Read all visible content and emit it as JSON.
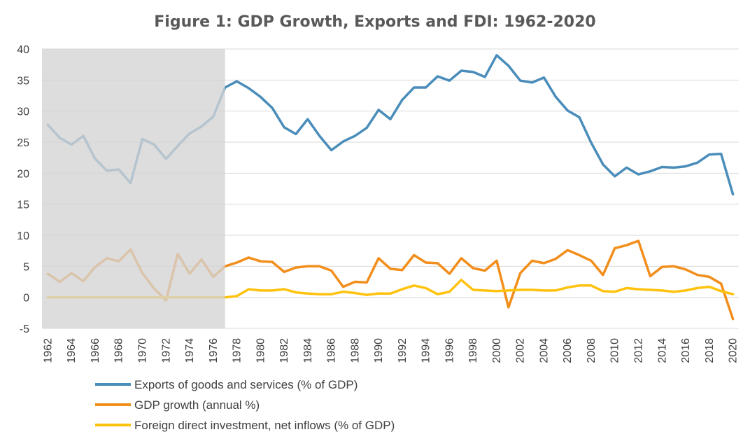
{
  "chart_data": {
    "type": "line",
    "title": "Figure 1: GDP Growth, Exports and FDI: 1962-2020",
    "xlabel": "",
    "ylabel": "",
    "ylim": [
      -5,
      40
    ],
    "y_ticks": [
      "-5",
      "0",
      "5",
      "10",
      "15",
      "20",
      "25",
      "30",
      "35",
      "40"
    ],
    "x_ticks": [
      "1962",
      "1964",
      "1966",
      "1968",
      "1970",
      "1972",
      "1974",
      "1976",
      "1978",
      "1980",
      "1982",
      "1984",
      "1986",
      "1988",
      "1990",
      "1992",
      "1994",
      "1996",
      "1998",
      "2000",
      "2002",
      "2004",
      "2006",
      "2008",
      "2010",
      "2012",
      "2014",
      "2016",
      "2018",
      "2020"
    ],
    "grid": "horizontal",
    "legend": "bottom",
    "shaded_range": [
      1962,
      1977
    ],
    "shade_color": "#d3d3d3",
    "x": [
      1962,
      1963,
      1964,
      1965,
      1966,
      1967,
      1968,
      1969,
      1970,
      1971,
      1972,
      1973,
      1974,
      1975,
      1976,
      1977,
      1978,
      1979,
      1980,
      1981,
      1982,
      1983,
      1984,
      1985,
      1986,
      1987,
      1988,
      1989,
      1990,
      1991,
      1992,
      1993,
      1994,
      1995,
      1996,
      1997,
      1998,
      1999,
      2000,
      2001,
      2002,
      2003,
      2004,
      2005,
      2006,
      2007,
      2008,
      2009,
      2010,
      2011,
      2012,
      2013,
      2014,
      2015,
      2016,
      2017,
      2018,
      2019,
      2020
    ],
    "series": [
      {
        "name": "Exports of goods and services (% of GDP)",
        "color": "#4a8dba",
        "values": [
          27.8,
          25.7,
          24.6,
          26.0,
          22.3,
          20.4,
          20.6,
          18.4,
          25.5,
          24.6,
          22.3,
          24.4,
          26.4,
          27.5,
          29.1,
          33.8,
          34.8,
          33.7,
          32.3,
          30.5,
          27.4,
          26.3,
          28.7,
          26.0,
          23.7,
          25.1,
          26.0,
          27.3,
          30.2,
          28.7,
          31.8,
          33.8,
          33.8,
          35.6,
          34.9,
          36.5,
          36.3,
          35.5,
          39.0,
          37.3,
          34.9,
          34.6,
          35.4,
          32.3,
          30.1,
          29.0,
          24.9,
          21.4,
          19.5,
          20.9,
          19.8,
          20.3,
          21.0,
          20.9,
          21.1,
          21.7,
          23.0,
          23.1,
          16.6
        ]
      },
      {
        "name": "GDP growth (annual %)",
        "color": "#f28e1b",
        "values": [
          3.8,
          2.5,
          3.9,
          2.6,
          4.9,
          6.3,
          5.8,
          7.7,
          3.9,
          1.4,
          -0.5,
          7.0,
          3.8,
          6.1,
          3.3,
          5.0,
          5.6,
          6.4,
          5.8,
          5.7,
          4.1,
          4.8,
          5.0,
          5.0,
          4.3,
          1.7,
          2.5,
          2.4,
          6.3,
          4.6,
          4.4,
          6.8,
          5.6,
          5.5,
          3.8,
          6.3,
          4.7,
          4.3,
          5.9,
          -1.6,
          3.9,
          5.9,
          5.5,
          6.2,
          7.6,
          6.8,
          5.9,
          3.6,
          7.9,
          8.4,
          9.1,
          3.4,
          4.9,
          5.0,
          4.5,
          3.6,
          3.3,
          2.2,
          -3.5
        ]
      },
      {
        "name": "Foreign direct investment, net inflows (% of GDP)",
        "color": "#ffc20e",
        "values": [
          0,
          0,
          0,
          0,
          0,
          0,
          0,
          0,
          0,
          0,
          0,
          0,
          0,
          0,
          0,
          0,
          0.2,
          1.3,
          1.1,
          1.1,
          1.3,
          0.8,
          0.6,
          0.5,
          0.5,
          0.9,
          0.7,
          0.4,
          0.6,
          0.6,
          1.3,
          1.9,
          1.5,
          0.5,
          0.9,
          2.8,
          1.2,
          1.1,
          1.0,
          1.1,
          1.2,
          1.2,
          1.1,
          1.1,
          1.6,
          1.9,
          1.9,
          1.0,
          0.9,
          1.5,
          1.3,
          1.2,
          1.1,
          0.9,
          1.1,
          1.5,
          1.7,
          1.0,
          0.5
        ]
      }
    ]
  }
}
